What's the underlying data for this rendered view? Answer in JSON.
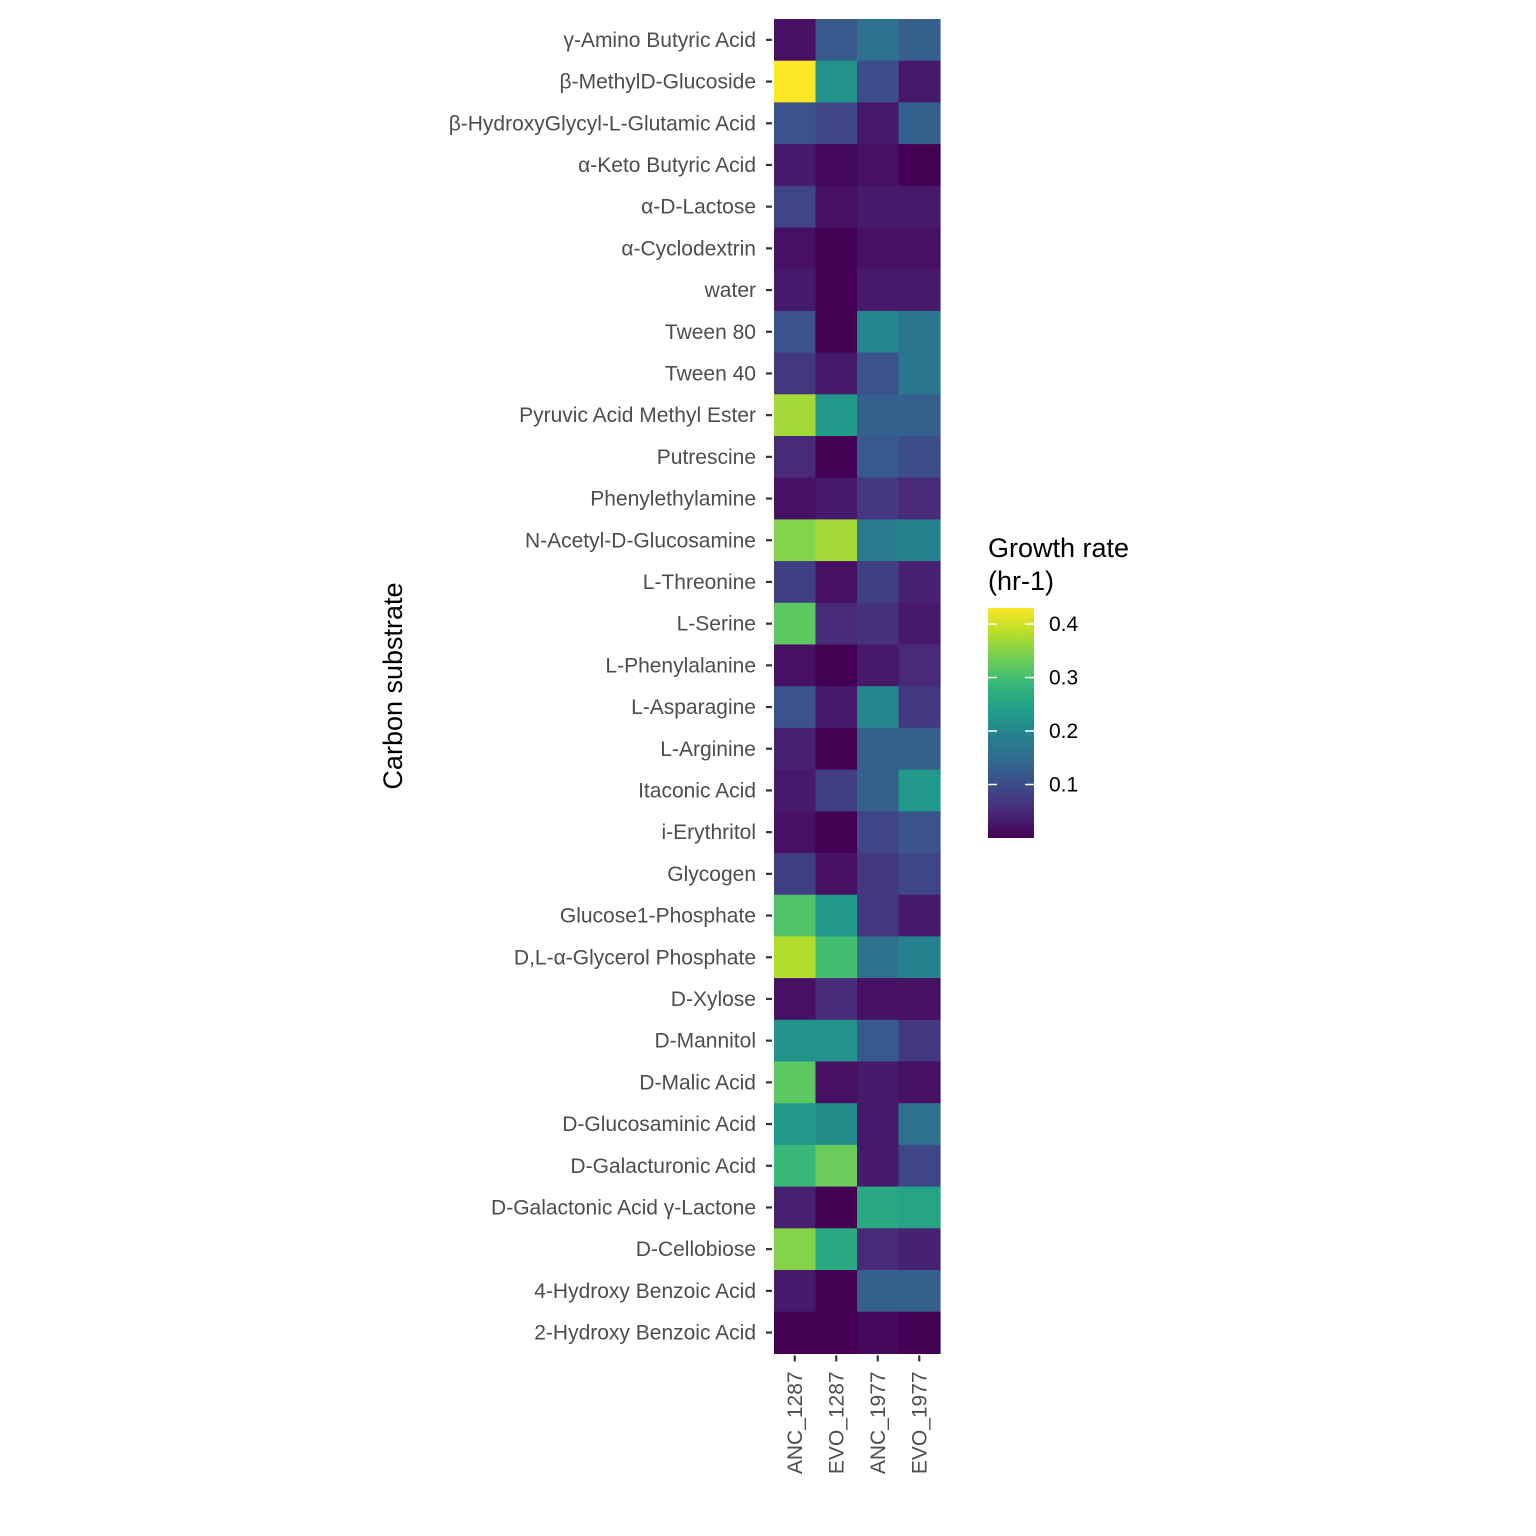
{
  "chart_data": {
    "type": "heatmap",
    "ylabel": "Carbon substrate",
    "xlabel": "",
    "title": "",
    "x_categories": [
      "ANC_1287",
      "EVO_1287",
      "ANC_1977",
      "EVO_1977"
    ],
    "y_categories": [
      "γ-Amino Butyric Acid",
      "β-MethylD-Glucoside",
      "β-HydroxyGlycyl-L-Glutamic Acid",
      "α-Keto Butyric Acid",
      "α-D-Lactose",
      "α-Cyclodextrin",
      "water",
      "Tween 80",
      "Tween 40",
      "Pyruvic Acid Methyl Ester",
      "Putrescine",
      "Phenylethylamine",
      "N-Acetyl-D-Glucosamine",
      "L-Threonine",
      "L-Serine",
      "L-Phenylalanine",
      "L-Asparagine",
      "L-Arginine",
      "Itaconic Acid",
      "i-Erythritol",
      "Glycogen",
      "Glucose1-Phosphate",
      "D,L-α-Glycerol Phosphate",
      "D-Xylose",
      "D-Mannitol",
      "D-Malic Acid",
      "D-Glucosaminic Acid",
      "D-Galacturonic Acid",
      "D-Galactonic Acid γ-Lactone",
      "D-Cellobiose",
      "4-Hydroxy Benzoic Acid",
      "2-Hydroxy Benzoic Acid"
    ],
    "values": [
      [
        0.02,
        0.12,
        0.16,
        0.13
      ],
      [
        0.43,
        0.22,
        0.1,
        0.03
      ],
      [
        0.11,
        0.09,
        0.03,
        0.13
      ],
      [
        0.03,
        0.01,
        0.02,
        0.0
      ],
      [
        0.09,
        0.02,
        0.03,
        0.03
      ],
      [
        0.02,
        0.0,
        0.02,
        0.02
      ],
      [
        0.03,
        0.0,
        0.03,
        0.03
      ],
      [
        0.11,
        0.0,
        0.2,
        0.17
      ],
      [
        0.07,
        0.03,
        0.11,
        0.17
      ],
      [
        0.37,
        0.23,
        0.13,
        0.13
      ],
      [
        0.05,
        0.0,
        0.12,
        0.1
      ],
      [
        0.02,
        0.03,
        0.07,
        0.05
      ],
      [
        0.35,
        0.37,
        0.18,
        0.19
      ],
      [
        0.08,
        0.02,
        0.08,
        0.04
      ],
      [
        0.32,
        0.05,
        0.06,
        0.03
      ],
      [
        0.02,
        0.0,
        0.03,
        0.05
      ],
      [
        0.11,
        0.03,
        0.2,
        0.07
      ],
      [
        0.04,
        0.0,
        0.13,
        0.13
      ],
      [
        0.03,
        0.08,
        0.13,
        0.23
      ],
      [
        0.02,
        0.0,
        0.09,
        0.11
      ],
      [
        0.08,
        0.02,
        0.07,
        0.09
      ],
      [
        0.31,
        0.23,
        0.07,
        0.03
      ],
      [
        0.38,
        0.3,
        0.16,
        0.19
      ],
      [
        0.02,
        0.05,
        0.02,
        0.02
      ],
      [
        0.22,
        0.22,
        0.12,
        0.07
      ],
      [
        0.32,
        0.02,
        0.03,
        0.02
      ],
      [
        0.23,
        0.21,
        0.03,
        0.16
      ],
      [
        0.29,
        0.33,
        0.03,
        0.09
      ],
      [
        0.04,
        0.0,
        0.26,
        0.25
      ],
      [
        0.35,
        0.26,
        0.05,
        0.04
      ],
      [
        0.03,
        0.0,
        0.13,
        0.13
      ],
      [
        0.0,
        0.0,
        0.01,
        0.0
      ]
    ],
    "legend": {
      "title_lines": [
        "Growth rate",
        "(hr-1)"
      ],
      "ticks": [
        0.1,
        0.2,
        0.3,
        0.4
      ],
      "tick_labels": [
        "0.1",
        "0.2",
        "0.3",
        "0.4"
      ],
      "range": [
        0.0,
        0.43
      ],
      "placement": "right"
    },
    "colormap": "viridis",
    "colors": {
      "viridis_stops": [
        "#440154",
        "#482878",
        "#3e4a89",
        "#31688e",
        "#26828e",
        "#1f9e89",
        "#35b779",
        "#6ece58",
        "#b5de2b",
        "#fde725"
      ],
      "text": "#4d4d4d",
      "tick": "#333333"
    }
  }
}
